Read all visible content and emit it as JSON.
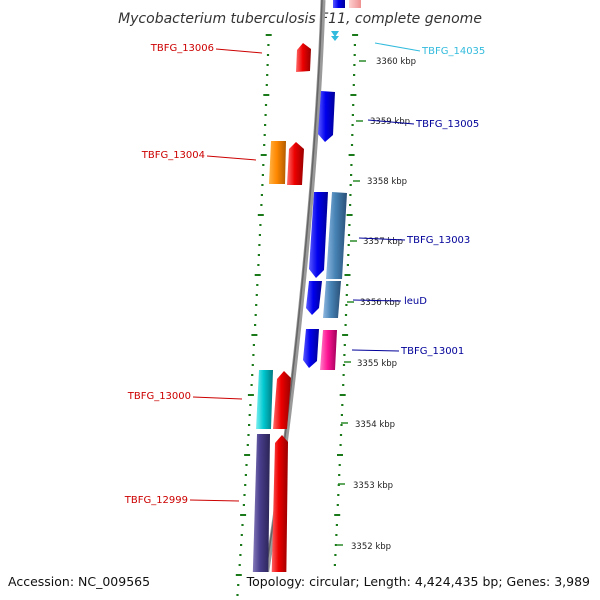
{
  "title": "Mycobacterium tuberculosis F11, complete genome",
  "footer": {
    "accession": "Accession: NC_009565",
    "topology": "Topology: circular; Length: 4,424,435 bp; Genes: 3,989"
  },
  "colors": {
    "backbone": "#888888",
    "dots": "#1a7a1a",
    "label_red": "#cc0000",
    "label_blue": "#000099",
    "label_cyan": "#33bbdd"
  },
  "ticks": [
    {
      "label": "3360 kbp",
      "kbp": 3360
    },
    {
      "label": "3359 kbp",
      "kbp": 3359
    },
    {
      "label": "3358 kbp",
      "kbp": 3358
    },
    {
      "label": "3357 kbp",
      "kbp": 3357
    },
    {
      "label": "3356 kbp",
      "kbp": 3356
    },
    {
      "label": "3355 kbp",
      "kbp": 3355
    },
    {
      "label": "3354 kbp",
      "kbp": 3354
    },
    {
      "label": "3353 kbp",
      "kbp": 3353
    },
    {
      "label": "3352 kbp",
      "kbp": 3352
    }
  ],
  "gene_labels": [
    {
      "text": "TBFG_13006",
      "side": "left",
      "color": "red"
    },
    {
      "text": "TBFG_13004",
      "side": "left",
      "color": "red"
    },
    {
      "text": "TBFG_13000",
      "side": "left",
      "color": "red"
    },
    {
      "text": "TBFG_12999",
      "side": "left",
      "color": "red"
    },
    {
      "text": "TBFG_14035",
      "side": "right",
      "color": "cyan"
    },
    {
      "text": "TBFG_13005",
      "side": "right",
      "color": "blue"
    },
    {
      "text": "TBFG_13003",
      "side": "right",
      "color": "blue"
    },
    {
      "text": "leuD",
      "side": "right",
      "color": "blue"
    },
    {
      "text": "TBFG_13001",
      "side": "right",
      "color": "blue"
    }
  ]
}
